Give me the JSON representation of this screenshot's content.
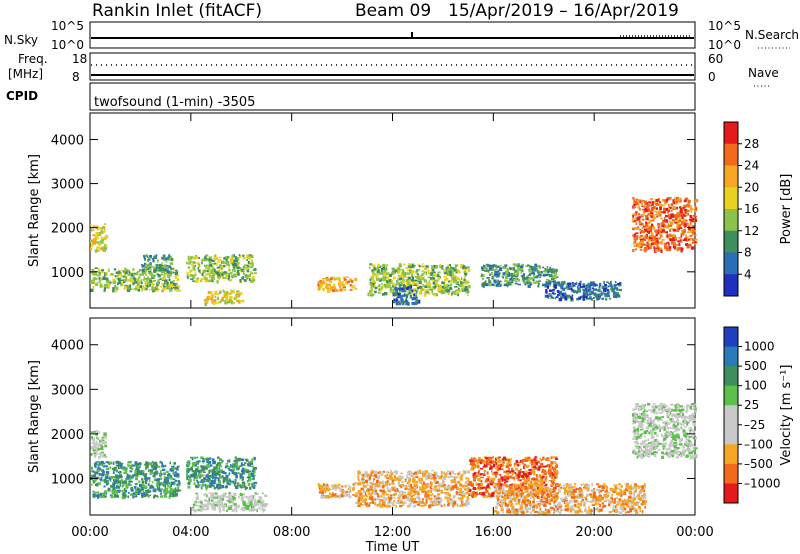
{
  "header": {
    "station": "Rankin Inlet (fitACF)",
    "beam": "Beam 09",
    "date_range": "15/Apr/2019 – 16/Apr/2019"
  },
  "noise_panel": {
    "left_label": "N.Sky",
    "right_label": "N.Search",
    "left_ticks": [
      "10^5",
      "10^0"
    ],
    "right_ticks": [
      "10^5",
      "10^0"
    ]
  },
  "freq_panel": {
    "left_label_lines": [
      "Freq.",
      "[MHz]"
    ],
    "left_ticks": [
      "18",
      "8"
    ],
    "right_ticks": [
      "60",
      "0"
    ],
    "right_label": "Nave"
  },
  "cpid_panel": {
    "label": "CPID",
    "text": "twofsound (1-min) -3505"
  },
  "chart_data": [
    {
      "type": "heatmap",
      "name_hint": "power-panel",
      "xlabel": "",
      "ylabel": "Slant Range [km]",
      "ylim": [
        180,
        4600
      ],
      "yticks": [
        1000,
        2000,
        3000,
        4000
      ],
      "xticks": [
        "00:00",
        "04:00",
        "08:00",
        "12:00",
        "16:00",
        "20:00",
        "00:00"
      ],
      "colorbar": {
        "label": "Power [dB]",
        "ticks": [
          "28",
          "24",
          "20",
          "16",
          "12",
          "8",
          "4"
        ],
        "colors": [
          "#e41a1c",
          "#f26b1d",
          "#f5a623",
          "#e8d21e",
          "#8bc34a",
          "#3e8e5e",
          "#2a6fb5",
          "#1f2fbf"
        ]
      },
      "regions": [
        {
          "t": [
            0.0,
            0.6
          ],
          "r": [
            1500,
            2100
          ],
          "level": 3
        },
        {
          "t": [
            0.0,
            3.5
          ],
          "r": [
            600,
            1100
          ],
          "level": 4
        },
        {
          "t": [
            2.0,
            3.2
          ],
          "r": [
            1000,
            1400
          ],
          "level": 5
        },
        {
          "t": [
            3.8,
            6.5
          ],
          "r": [
            800,
            1400
          ],
          "level": 4
        },
        {
          "t": [
            4.5,
            6.0
          ],
          "r": [
            300,
            600
          ],
          "level": 3
        },
        {
          "t": [
            9.0,
            10.5
          ],
          "r": [
            600,
            900
          ],
          "level": 2
        },
        {
          "t": [
            11.0,
            15.0
          ],
          "r": [
            500,
            1200
          ],
          "level": 4
        },
        {
          "t": [
            12.0,
            13.0
          ],
          "r": [
            300,
            700
          ],
          "level": 6
        },
        {
          "t": [
            15.5,
            18.5
          ],
          "r": [
            700,
            1200
          ],
          "level": 5
        },
        {
          "t": [
            18.0,
            21.0
          ],
          "r": [
            400,
            800
          ],
          "level": 6
        },
        {
          "t": [
            21.5,
            24.0
          ],
          "r": [
            1500,
            2700
          ],
          "level": 1
        }
      ]
    },
    {
      "type": "heatmap",
      "name_hint": "velocity-panel",
      "xlabel": "Time UT",
      "ylabel": "Slant Range [km]",
      "ylim": [
        180,
        4600
      ],
      "yticks": [
        1000,
        2000,
        3000,
        4000
      ],
      "xticks": [
        "00:00",
        "04:00",
        "08:00",
        "12:00",
        "16:00",
        "20:00",
        "00:00"
      ],
      "colorbar": {
        "label": "Velocity [m s⁻¹]",
        "ticks": [
          "1000",
          "500",
          "100",
          "25",
          "–25",
          "–100",
          "–500",
          "–1000"
        ],
        "colors": [
          "#1f3fbf",
          "#2b7ab8",
          "#3e8e5e",
          "#5cc04a",
          "#c8c8c8",
          "#c8c8c8",
          "#f5a623",
          "#f26b1d",
          "#e41a1c"
        ]
      },
      "regions": [
        {
          "t": [
            0.0,
            0.6
          ],
          "r": [
            1500,
            2100
          ],
          "level": 4
        },
        {
          "t": [
            0.0,
            3.5
          ],
          "r": [
            600,
            1400
          ],
          "level": 2
        },
        {
          "t": [
            3.8,
            6.5
          ],
          "r": [
            800,
            1500
          ],
          "level": 2
        },
        {
          "t": [
            4.0,
            7.0
          ],
          "r": [
            300,
            700
          ],
          "level": 4
        },
        {
          "t": [
            9.0,
            10.5
          ],
          "r": [
            600,
            900
          ],
          "level": 6
        },
        {
          "t": [
            10.5,
            15.0
          ],
          "r": [
            400,
            1200
          ],
          "level": 6
        },
        {
          "t": [
            15.0,
            18.5
          ],
          "r": [
            600,
            1500
          ],
          "level": 7
        },
        {
          "t": [
            16.0,
            22.0
          ],
          "r": [
            250,
            900
          ],
          "level": 6
        },
        {
          "t": [
            21.5,
            24.0
          ],
          "r": [
            1500,
            2700
          ],
          "level": 4
        }
      ]
    }
  ]
}
